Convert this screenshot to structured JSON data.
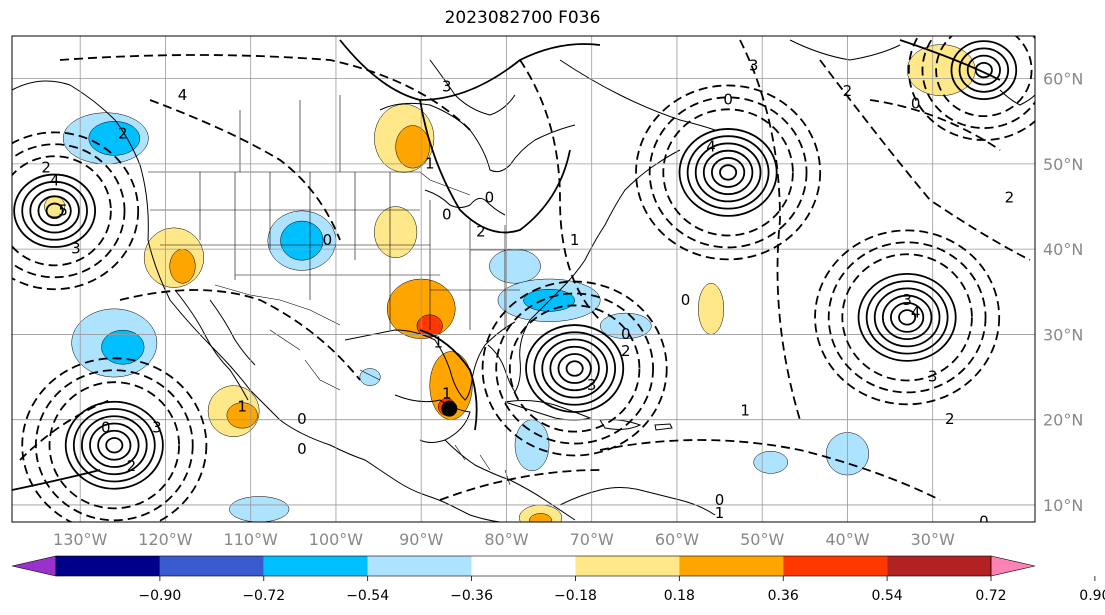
{
  "title": "2023082700 F036",
  "map": {
    "lon_min": -138,
    "lon_max": -18,
    "lat_min": 8,
    "lat_max": 65,
    "lon_ticks": [
      {
        "lon": -130,
        "label": "130°W"
      },
      {
        "lon": -120,
        "label": "120°W"
      },
      {
        "lon": -110,
        "label": "110°W"
      },
      {
        "lon": -100,
        "label": "100°W"
      },
      {
        "lon": -90,
        "label": "90°W"
      },
      {
        "lon": -80,
        "label": "80°W"
      },
      {
        "lon": -70,
        "label": "70°W"
      },
      {
        "lon": -60,
        "label": "60°W"
      },
      {
        "lon": -50,
        "label": "50°W"
      },
      {
        "lon": -40,
        "label": "40°W"
      },
      {
        "lon": -30,
        "label": "30°W"
      }
    ],
    "lat_ticks": [
      {
        "lat": 60,
        "label": "60°N"
      },
      {
        "lat": 50,
        "label": "50°N"
      },
      {
        "lat": 40,
        "label": "40°N"
      },
      {
        "lat": 30,
        "label": "30°N"
      },
      {
        "lat": 20,
        "label": "20°N"
      },
      {
        "lat": 10,
        "label": "10°N"
      }
    ],
    "storm_marker": {
      "lon": -86.7,
      "lat": 21.3,
      "color": "#000000"
    },
    "fill_patches": [
      {
        "lon": -90,
        "lat": 33,
        "rx": 4,
        "ry": 3.5,
        "level": "orange"
      },
      {
        "lon": -86.5,
        "lat": 24,
        "rx": 2.5,
        "ry": 4,
        "level": "orange"
      },
      {
        "lon": -89,
        "lat": 31,
        "rx": 1.5,
        "ry": 1.3,
        "level": "red"
      },
      {
        "lon": -87,
        "lat": 21.5,
        "rx": 1,
        "ry": 1,
        "level": "red"
      },
      {
        "lon": -92,
        "lat": 53,
        "rx": 3.5,
        "ry": 4,
        "level": "yellow"
      },
      {
        "lon": -91,
        "lat": 52,
        "rx": 2,
        "ry": 2.5,
        "level": "orange"
      },
      {
        "lon": -93,
        "lat": 42,
        "rx": 2.5,
        "ry": 3,
        "level": "yellow"
      },
      {
        "lon": -119,
        "lat": 39,
        "rx": 3.5,
        "ry": 3.5,
        "level": "yellow"
      },
      {
        "lon": -118,
        "lat": 38,
        "rx": 1.5,
        "ry": 2,
        "level": "orange"
      },
      {
        "lon": -112,
        "lat": 21,
        "rx": 3,
        "ry": 3,
        "level": "yellow"
      },
      {
        "lon": -111,
        "lat": 20.5,
        "rx": 1.8,
        "ry": 1.5,
        "level": "orange"
      },
      {
        "lon": -133,
        "lat": 45,
        "rx": 1.2,
        "ry": 1.2,
        "level": "yellow"
      },
      {
        "lon": -56,
        "lat": 33,
        "rx": 1.5,
        "ry": 3,
        "level": "yellow"
      },
      {
        "lon": -29,
        "lat": 61,
        "rx": 4,
        "ry": 3,
        "level": "yellow"
      },
      {
        "lon": -76,
        "lat": 8.5,
        "rx": 2.5,
        "ry": 1.5,
        "level": "yellow"
      },
      {
        "lon": -76,
        "lat": 8.2,
        "rx": 1.3,
        "ry": 0.8,
        "level": "orange"
      },
      {
        "lon": -127,
        "lat": 53,
        "rx": 5,
        "ry": 3,
        "level": "lightblue"
      },
      {
        "lon": -126,
        "lat": 53,
        "rx": 3,
        "ry": 2,
        "level": "blue"
      },
      {
        "lon": -104,
        "lat": 41,
        "rx": 4,
        "ry": 3.5,
        "level": "lightblue"
      },
      {
        "lon": -104,
        "lat": 41,
        "rx": 2.5,
        "ry": 2.3,
        "level": "blue"
      },
      {
        "lon": -126,
        "lat": 29,
        "rx": 5,
        "ry": 4,
        "level": "lightblue"
      },
      {
        "lon": -125,
        "lat": 28.5,
        "rx": 2.5,
        "ry": 2,
        "level": "blue"
      },
      {
        "lon": -79,
        "lat": 38,
        "rx": 3,
        "ry": 2,
        "level": "lightblue"
      },
      {
        "lon": -75,
        "lat": 34,
        "rx": 6,
        "ry": 2.5,
        "level": "lightblue"
      },
      {
        "lon": -75,
        "lat": 34,
        "rx": 3,
        "ry": 1.3,
        "level": "blue"
      },
      {
        "lon": -66,
        "lat": 31,
        "rx": 3,
        "ry": 1.5,
        "level": "lightblue"
      },
      {
        "lon": -77,
        "lat": 17,
        "rx": 2,
        "ry": 3,
        "level": "lightblue"
      },
      {
        "lon": -40,
        "lat": 16,
        "rx": 2.5,
        "ry": 2.5,
        "level": "lightblue"
      },
      {
        "lon": -49,
        "lat": 15,
        "rx": 2,
        "ry": 1.3,
        "level": "lightblue"
      },
      {
        "lon": -109,
        "lat": 9.5,
        "rx": 3.5,
        "ry": 1.5,
        "level": "lightblue"
      },
      {
        "lon": -96,
        "lat": 25,
        "rx": 1.2,
        "ry": 1,
        "level": "lightblue"
      }
    ],
    "highs": [
      {
        "lon": -54,
        "lat": 49,
        "rings": 6
      },
      {
        "lon": -72,
        "lat": 26,
        "rings": 6
      },
      {
        "lon": -33,
        "lat": 32,
        "rings": 6
      },
      {
        "lon": -126,
        "lat": 17,
        "rings": 6
      },
      {
        "lon": -133,
        "lat": 44.5,
        "rings": 5
      },
      {
        "lon": -24,
        "lat": 61,
        "rings": 4
      }
    ],
    "contour_labels": [
      {
        "lon": -134,
        "lat": 49.5,
        "text": "2"
      },
      {
        "lon": -133,
        "lat": 48,
        "text": "4"
      },
      {
        "lon": -132,
        "lat": 44.5,
        "text": "5"
      },
      {
        "lon": -130.5,
        "lat": 40,
        "text": "3"
      },
      {
        "lon": -118,
        "lat": 58,
        "text": "4"
      },
      {
        "lon": -125,
        "lat": 53.5,
        "text": "2"
      },
      {
        "lon": -101,
        "lat": 41,
        "text": "0"
      },
      {
        "lon": -87,
        "lat": 59,
        "text": "3"
      },
      {
        "lon": -89,
        "lat": 50,
        "text": "1"
      },
      {
        "lon": -82,
        "lat": 46,
        "text": "0"
      },
      {
        "lon": -87,
        "lat": 44,
        "text": "0"
      },
      {
        "lon": -83,
        "lat": 42,
        "text": "2"
      },
      {
        "lon": -72,
        "lat": 41,
        "text": "1"
      },
      {
        "lon": -51,
        "lat": 61.5,
        "text": "3"
      },
      {
        "lon": -54,
        "lat": 57.5,
        "text": "0"
      },
      {
        "lon": -40,
        "lat": 58.5,
        "text": "2"
      },
      {
        "lon": -56,
        "lat": 52,
        "text": "4"
      },
      {
        "lon": -33,
        "lat": 34,
        "text": "3"
      },
      {
        "lon": -32,
        "lat": 32.5,
        "text": "4"
      },
      {
        "lon": -70,
        "lat": 24,
        "text": "3"
      },
      {
        "lon": -66,
        "lat": 30,
        "text": "0"
      },
      {
        "lon": -66,
        "lat": 28,
        "text": "2"
      },
      {
        "lon": -52,
        "lat": 21,
        "text": "1"
      },
      {
        "lon": -121,
        "lat": 19,
        "text": "3"
      },
      {
        "lon": -124,
        "lat": 14.5,
        "text": "2"
      },
      {
        "lon": -127,
        "lat": 19,
        "text": "0"
      },
      {
        "lon": -104,
        "lat": 16.5,
        "text": "0"
      },
      {
        "lon": -111,
        "lat": 21.5,
        "text": "1"
      },
      {
        "lon": -104,
        "lat": 20,
        "text": "0"
      },
      {
        "lon": -55,
        "lat": 9,
        "text": "1"
      },
      {
        "lon": -55,
        "lat": 10.5,
        "text": "0"
      },
      {
        "lon": -28,
        "lat": 20,
        "text": "2"
      },
      {
        "lon": -24,
        "lat": 8,
        "text": "0"
      },
      {
        "lon": -30,
        "lat": 25,
        "text": "3"
      },
      {
        "lon": -88,
        "lat": 29,
        "text": "1"
      },
      {
        "lon": -87,
        "lat": 23,
        "text": "1"
      },
      {
        "lon": -59,
        "lat": 34,
        "text": "0"
      },
      {
        "lon": -32,
        "lat": 57,
        "text": "0"
      },
      {
        "lon": -21,
        "lat": 46,
        "text": "2"
      }
    ]
  },
  "colorbar": {
    "colors": [
      "#9932cc",
      "#00008b",
      "#3a5ad0",
      "#00bfff",
      "#aee3ff",
      "#ffffff",
      "#ffe88a",
      "#ffa500",
      "#ff3800",
      "#b22222",
      "#ff82b4"
    ],
    "ticks": [
      "−0.90",
      "−0.72",
      "−0.54",
      "−0.36",
      "−0.18",
      "0.18",
      "0.36",
      "0.54",
      "0.72",
      "0.90"
    ]
  }
}
